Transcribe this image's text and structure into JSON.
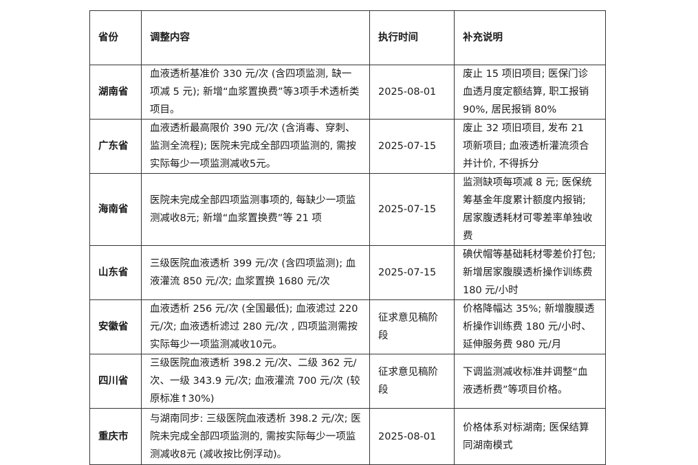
{
  "headers": [
    "省份",
    "调整内容",
    "执行时间",
    "补充说明"
  ],
  "rows": [
    {
      "province": "湖南省",
      "content": "血液透析基准价 330 元/次 (含四项监测, 缺一项减 5 元); 新增“血浆置换费”等3项手术透析类项目。",
      "date": "2025-08-01",
      "notes": "废止 15 项旧项目; 医保门诊血透月度定额结算, 职工报销 90%, 居民报销 80%"
    },
    {
      "province": "广东省",
      "content": "血液透析最高限价 390 元/次 (含消毒、穿刺、监测全流程); 医院未完成全部四项监测的, 需按实际每少一项监测减收5元。",
      "date": "2025-07-15",
      "notes": "废止 32 项旧项目, 发布 21 项新项目; 血液透析灌流须合并计价, 不得拆分"
    },
    {
      "province": "海南省",
      "content": "医院未完成全部四项监测事项的, 每缺少一项监测减收8元; 新增“血浆置换费”等 21 项",
      "date": "2025-07-15",
      "notes": "监测缺项每项减 8 元; 医保统筹基金年度累计额度内报销; 居家腹透耗材可零差率单独收费"
    },
    {
      "province": "山东省",
      "content": "三级医院血液透析 399 元/次 (含四项监测); 血液灌流 850 元/次; 血浆置换 1680 元/次",
      "date": "2025-07-15",
      "notes": "碘伏帽等基础耗材零差价打包; 新增居家腹膜透析操作训练费 180 元/小时"
    },
    {
      "province": "安徽省",
      "content": "血液透析 256 元/次 (全国最低); 血液滤过 220 元/次; 血液透析滤过 280 元/次 , 四项监测需按实际每少一项监测减收10元。",
      "date": "征求意见稿阶段",
      "notes": "价格降幅达 35%; 新增腹膜透析操作训练费 180 元/小时、延伸服务费 980 元/月"
    },
    {
      "province": "四川省",
      "content": "三级医院血液透析 398.2 元/次、二级 362 元/次、一级 343.9 元/次; 血液灌流 700 元/次 (较原标准↑30%)",
      "date": "征求意见稿阶段",
      "notes": "下调监测减收标准并调整“血液透析费”等项目价格。"
    },
    {
      "province": "重庆市",
      "content": "与湖南同步: 三级医院血液透析 398.2 元/次; 医院未完成全部四项监测的, 需按实际每少一项监测减收8元 (减收按比例浮动)。",
      "date": "2025-08-01",
      "notes": "价格体系对标湖南; 医保结算同湖南模式"
    }
  ]
}
